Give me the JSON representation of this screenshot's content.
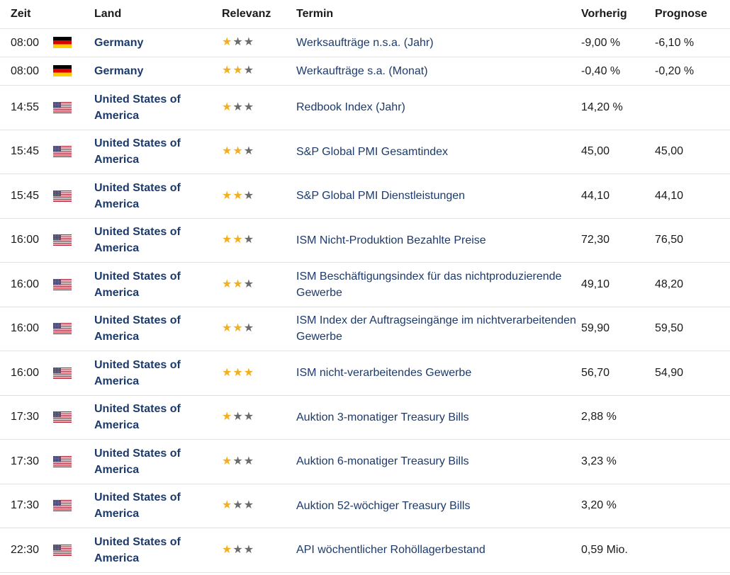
{
  "headers": {
    "time": "Zeit",
    "country": "Land",
    "relevance": "Relevanz",
    "event": "Termin",
    "previous": "Vorherig",
    "forecast": "Prognose"
  },
  "colors": {
    "star_on": "#f2b01e",
    "star_off": "#6b6b6b",
    "link": "#1c3a6b"
  },
  "rows": [
    {
      "time": "08:00",
      "flag": "de-flag-icon",
      "country": "Germany",
      "stars": 1,
      "event": "Werksaufträge n.s.a. (Jahr)",
      "previous": "-9,00 %",
      "forecast": "-6,10 %"
    },
    {
      "time": "08:00",
      "flag": "de-flag-icon",
      "country": "Germany",
      "stars": 2,
      "event": "Werkaufträge s.a. (Monat)",
      "previous": "-0,40 %",
      "forecast": "-0,20 %"
    },
    {
      "time": "14:55",
      "flag": "us-flag-icon",
      "country": "United States of America",
      "stars": 1,
      "event": "Redbook Index (Jahr)",
      "previous": "14,20 %",
      "forecast": ""
    },
    {
      "time": "15:45",
      "flag": "us-flag-icon",
      "country": "United States of America",
      "stars": 2,
      "event": "S&P Global PMI Gesamtindex",
      "previous": "45,00",
      "forecast": "45,00"
    },
    {
      "time": "15:45",
      "flag": "us-flag-icon",
      "country": "United States of America",
      "stars": 2,
      "event": "S&P Global PMI Dienstleistungen",
      "previous": "44,10",
      "forecast": "44,10"
    },
    {
      "time": "16:00",
      "flag": "us-flag-icon",
      "country": "United States of America",
      "stars": 2,
      "event": "ISM Nicht-Produktion Bezahlte Preise",
      "previous": "72,30",
      "forecast": "76,50"
    },
    {
      "time": "16:00",
      "flag": "us-flag-icon",
      "country": "United States of America",
      "stars": 2,
      "event": "ISM Beschäftigungsindex für das nichtproduzierende Gewerbe",
      "previous": "49,10",
      "forecast": "48,20"
    },
    {
      "time": "16:00",
      "flag": "us-flag-icon",
      "country": "United States of America",
      "stars": 2,
      "event": "ISM Index der Auftragseingänge im nichtverarbeitenden Gewerbe",
      "previous": "59,90",
      "forecast": "59,50"
    },
    {
      "time": "16:00",
      "flag": "us-flag-icon",
      "country": "United States of America",
      "stars": 3,
      "event": "ISM nicht-verarbeitendes Gewerbe",
      "previous": "56,70",
      "forecast": "54,90"
    },
    {
      "time": "17:30",
      "flag": "us-flag-icon",
      "country": "United States of America",
      "stars": 1,
      "event": "Auktion 3-monatiger Treasury Bills",
      "previous": "2,88 %",
      "forecast": ""
    },
    {
      "time": "17:30",
      "flag": "us-flag-icon",
      "country": "United States of America",
      "stars": 1,
      "event": "Auktion 6-monatiger Treasury Bills",
      "previous": "3,23 %",
      "forecast": ""
    },
    {
      "time": "17:30",
      "flag": "us-flag-icon",
      "country": "United States of America",
      "stars": 1,
      "event": "Auktion 52-wöchiger Treasury Bills",
      "previous": "3,20 %",
      "forecast": ""
    },
    {
      "time": "22:30",
      "flag": "us-flag-icon",
      "country": "United States of America",
      "stars": 1,
      "event": "API wöchentlicher Rohöllagerbestand",
      "previous": "0,59 Mio.",
      "forecast": ""
    }
  ]
}
